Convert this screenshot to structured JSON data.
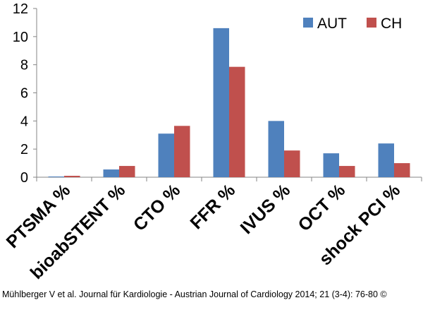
{
  "chart_data": {
    "type": "bar",
    "categories": [
      "PTSMA %",
      "bioabSTENT %",
      "CTO %",
      "FFR %",
      "IVUS %",
      "OCT %",
      "shock PCI %"
    ],
    "series": [
      {
        "name": "AUT",
        "color": "#4f81bd",
        "values": [
          0.05,
          0.55,
          3.1,
          10.6,
          4.0,
          1.7,
          2.4
        ]
      },
      {
        "name": "CH",
        "color": "#c0504d",
        "values": [
          0.1,
          0.8,
          3.65,
          7.85,
          1.9,
          0.8,
          1.0
        ]
      }
    ],
    "ylim": [
      0,
      12
    ],
    "yticks": [
      0,
      2,
      4,
      6,
      8,
      10,
      12
    ],
    "legend_position": "top-right",
    "grid": false
  },
  "caption": "Mühlberger V et al. Journal für Kardiologie - Austrian Journal of Cardiology 2014; 21 (3-4): 76-80 ©"
}
